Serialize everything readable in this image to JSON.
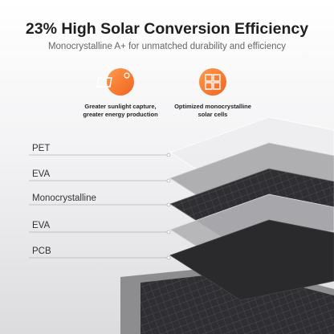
{
  "header": {
    "title": "23% High Solar Conversion Efficiency",
    "subtitle": "Monocrystalline A+ for unmatched durability and efficiency"
  },
  "features": [
    {
      "lines": [
        "Greater sunlight capture,",
        "greater energy production"
      ]
    },
    {
      "lines": [
        "Optimized monocrystalline",
        "solar cells"
      ]
    }
  ],
  "layers": [
    "PET",
    "EVA",
    "Monocrystalline",
    "EVA",
    "PCB"
  ]
}
